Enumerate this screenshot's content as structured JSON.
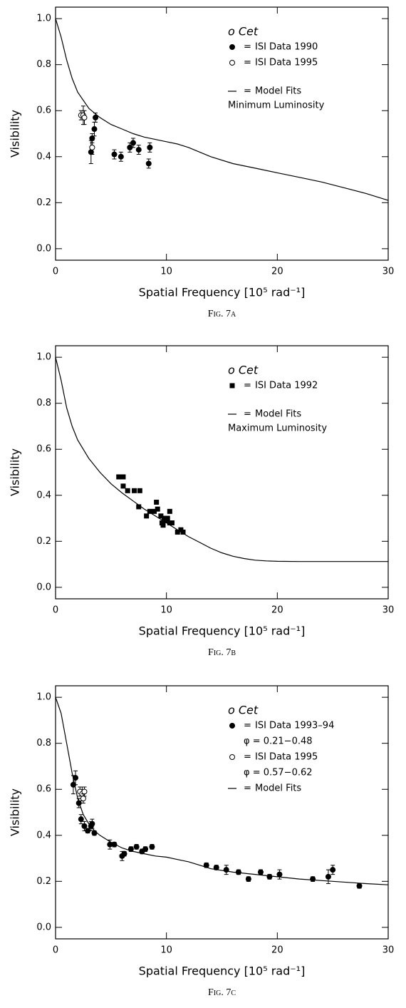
{
  "chart_data": [
    {
      "type": "scatter",
      "title": "o Cet",
      "annotation": "Minimum Luminosity",
      "legend_separator": "=",
      "xlabel": "Spatial Frequency [10⁵ rad⁻¹]",
      "ylabel": "Visibility",
      "caption": "Fig. 7a",
      "xlim": [
        0,
        30
      ],
      "ylim": [
        -0.05,
        1.05
      ],
      "xticks": [
        0,
        10,
        20,
        30
      ],
      "yticks": [
        {
          "value": 0,
          "label": "0.0"
        },
        0.2,
        0.4,
        0.6,
        0.8,
        {
          "value": 1,
          "label": "1.0"
        }
      ],
      "series": [
        {
          "name": "ISI Data 1990",
          "marker": "filled",
          "color": "#000000",
          "x": [
            3.2,
            3.3,
            3.5,
            3.6,
            5.3,
            5.9,
            6.7,
            7.0,
            7.5,
            8.4,
            8.5
          ],
          "values": [
            0.42,
            0.48,
            0.52,
            0.57,
            0.41,
            0.4,
            0.44,
            0.46,
            0.43,
            0.37,
            0.44
          ],
          "errors": [
            0.05,
            0.02,
            0.03,
            0.02,
            0.02,
            0.02,
            0.02,
            0.02,
            0.02,
            0.02,
            0.02
          ]
        },
        {
          "name": "ISI Data 1995",
          "marker": "open",
          "color": "#000000",
          "x": [
            2.3,
            2.5,
            2.6,
            3.3
          ],
          "values": [
            0.58,
            0.58,
            0.57,
            0.44
          ],
          "errors": [
            0.02,
            0.04,
            0.03,
            0.03
          ]
        },
        {
          "name": "Model Fits",
          "marker": "line",
          "color": "#000000",
          "x": [
            0,
            0.5,
            1,
            1.5,
            2,
            3,
            4,
            5,
            6,
            7,
            8,
            9,
            10,
            11,
            12,
            14,
            16,
            18,
            20,
            22,
            24,
            26,
            28,
            30
          ],
          "values": [
            1.0,
            0.92,
            0.82,
            0.74,
            0.68,
            0.61,
            0.57,
            0.54,
            0.52,
            0.5,
            0.485,
            0.475,
            0.465,
            0.455,
            0.44,
            0.4,
            0.37,
            0.35,
            0.33,
            0.31,
            0.29,
            0.265,
            0.24,
            0.21
          ]
        }
      ]
    },
    {
      "type": "scatter",
      "title": "o Cet",
      "annotation": "Maximum Luminosity",
      "legend_separator": "=",
      "xlabel": "Spatial Frequency [10⁵ rad⁻¹]",
      "ylabel": "Visibility",
      "caption": "Fig. 7b",
      "xlim": [
        0,
        30
      ],
      "ylim": [
        -0.05,
        1.05
      ],
      "xticks": [
        0,
        10,
        20,
        30
      ],
      "yticks": [
        {
          "value": 0,
          "label": "0.0"
        },
        0.2,
        0.4,
        0.6,
        0.8,
        {
          "value": 1,
          "label": "1.0"
        }
      ],
      "series": [
        {
          "name": "ISI Data 1992",
          "marker": "square",
          "color": "#000000",
          "x": [
            5.7,
            6.1,
            6.1,
            6.5,
            7.1,
            7.6,
            7.5,
            8.2,
            8.5,
            8.9,
            9.1,
            9.2,
            9.5,
            9.6,
            9.7,
            9.8,
            10.0,
            10.1,
            10.3,
            10.3,
            10.5,
            11.0,
            11.3,
            11.5
          ],
          "values": [
            0.48,
            0.48,
            0.44,
            0.42,
            0.42,
            0.42,
            0.35,
            0.31,
            0.33,
            0.33,
            0.37,
            0.34,
            0.31,
            0.28,
            0.27,
            0.3,
            0.29,
            0.3,
            0.33,
            0.28,
            0.28,
            0.24,
            0.25,
            0.24
          ]
        },
        {
          "name": "Model Fits",
          "marker": "line",
          "color": "#000000",
          "x": [
            0,
            0.5,
            1,
            1.5,
            2,
            3,
            4,
            5,
            6,
            7,
            8,
            9,
            10,
            11,
            12,
            13,
            14,
            15,
            16,
            17,
            18,
            19,
            20,
            22,
            25,
            30
          ],
          "values": [
            1.0,
            0.9,
            0.78,
            0.7,
            0.64,
            0.56,
            0.5,
            0.45,
            0.41,
            0.375,
            0.34,
            0.31,
            0.28,
            0.25,
            0.22,
            0.195,
            0.17,
            0.15,
            0.135,
            0.125,
            0.118,
            0.115,
            0.113,
            0.112,
            0.112,
            0.112
          ]
        }
      ]
    },
    {
      "type": "scatter",
      "title": "o Cet",
      "legend_separator": "=",
      "xlabel": "Spatial Frequency [10⁵ rad⁻¹]",
      "ylabel": "Visibility",
      "caption": "Fig. 7c",
      "xlim": [
        0,
        30
      ],
      "ylim": [
        -0.05,
        1.05
      ],
      "xticks": [
        0,
        10,
        20,
        30
      ],
      "yticks": [
        {
          "value": 0,
          "label": "0.0"
        },
        0.2,
        0.4,
        0.6,
        0.8,
        {
          "value": 1,
          "label": "1.0"
        }
      ],
      "series": [
        {
          "name": "ISI Data 1993–94",
          "note": "φ = 0.21−0.48",
          "marker": "filled",
          "color": "#000000",
          "x": [
            1.6,
            1.8,
            2.1,
            2.3,
            2.6,
            2.9,
            3.2,
            3.3,
            3.5,
            4.9,
            5.3,
            6.0,
            6.2,
            6.8,
            7.3,
            7.8,
            8.1,
            8.7,
            13.6,
            14.5,
            15.4,
            16.5,
            17.4,
            18.5,
            19.3,
            20.2,
            23.2,
            24.6,
            25.0,
            27.4
          ],
          "values": [
            0.62,
            0.65,
            0.54,
            0.47,
            0.44,
            0.42,
            0.44,
            0.45,
            0.41,
            0.36,
            0.36,
            0.31,
            0.32,
            0.34,
            0.35,
            0.33,
            0.34,
            0.35,
            0.27,
            0.26,
            0.25,
            0.24,
            0.21,
            0.24,
            0.22,
            0.23,
            0.21,
            0.22,
            0.25,
            0.18
          ],
          "errors": [
            0.04,
            0.03,
            0.02,
            0.02,
            0.02,
            0.01,
            0.02,
            0.02,
            0.01,
            0.02,
            0.01,
            0.02,
            0.01,
            0.01,
            0.01,
            0.01,
            0.01,
            0.01,
            0.01,
            0.01,
            0.02,
            0.01,
            0.01,
            0.01,
            0.01,
            0.02,
            0.01,
            0.03,
            0.02,
            0.01
          ]
        },
        {
          "name": "ISI Data 1995",
          "note": "φ = 0.57−0.62",
          "marker": "open",
          "color": "#000000",
          "x": [
            2.2,
            2.4,
            2.6,
            2.5
          ],
          "values": [
            0.59,
            0.58,
            0.59,
            0.56
          ],
          "errors": [
            0.02,
            0.03,
            0.02,
            0.02
          ]
        },
        {
          "name": "Model Fits",
          "marker": "line",
          "color": "#000000",
          "x": [
            0,
            0.5,
            1,
            1.5,
            2,
            2.5,
            3,
            3.5,
            4,
            5,
            6,
            7,
            8,
            9,
            10,
            11,
            12,
            13,
            14,
            16,
            18,
            20,
            22,
            25,
            28,
            30
          ],
          "values": [
            1.0,
            0.93,
            0.8,
            0.67,
            0.56,
            0.49,
            0.45,
            0.42,
            0.4,
            0.37,
            0.345,
            0.33,
            0.32,
            0.31,
            0.305,
            0.295,
            0.285,
            0.27,
            0.255,
            0.24,
            0.23,
            0.22,
            0.21,
            0.2,
            0.19,
            0.185
          ]
        }
      ]
    }
  ]
}
